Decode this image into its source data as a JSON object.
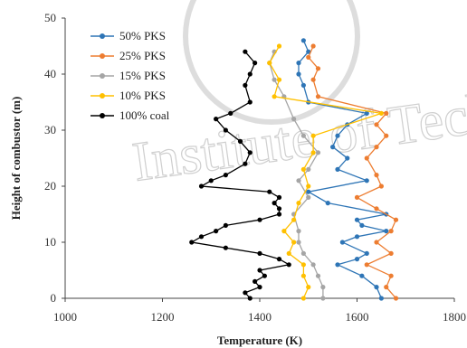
{
  "chart_data": {
    "type": "scatter",
    "title": "",
    "xlabel": "Temperature (K)",
    "ylabel": "Height of combustor (m)",
    "xlim": [
      1000,
      1800
    ],
    "ylim": [
      0,
      50
    ],
    "x_ticks": [
      1000,
      1200,
      1400,
      1600,
      1800
    ],
    "y_ticks": [
      0,
      10,
      20,
      30,
      40,
      50
    ],
    "grid": false,
    "legend_position": "top-left",
    "watermark_text": "Institute of Technology",
    "series": [
      {
        "name": "50% PKS",
        "color": "#2e75b6",
        "points": [
          [
            1650,
            0
          ],
          [
            1640,
            2
          ],
          [
            1610,
            4
          ],
          [
            1560,
            6
          ],
          [
            1600,
            7
          ],
          [
            1620,
            8
          ],
          [
            1570,
            10
          ],
          [
            1600,
            11
          ],
          [
            1660,
            12
          ],
          [
            1610,
            13
          ],
          [
            1600,
            14
          ],
          [
            1660,
            15
          ],
          [
            1540,
            17
          ],
          [
            1500,
            19
          ],
          [
            1620,
            21
          ],
          [
            1560,
            23
          ],
          [
            1580,
            25
          ],
          [
            1550,
            27
          ],
          [
            1560,
            29
          ],
          [
            1580,
            31
          ],
          [
            1620,
            33
          ],
          [
            1500,
            35
          ],
          [
            1490,
            38
          ],
          [
            1480,
            40
          ],
          [
            1480,
            42
          ],
          [
            1500,
            44
          ],
          [
            1490,
            46
          ]
        ]
      },
      {
        "name": "25% PKS",
        "color": "#ed7d31",
        "points": [
          [
            1680,
            0
          ],
          [
            1660,
            2
          ],
          [
            1670,
            4
          ],
          [
            1620,
            6
          ],
          [
            1670,
            8
          ],
          [
            1640,
            10
          ],
          [
            1670,
            12
          ],
          [
            1680,
            14
          ],
          [
            1640,
            16
          ],
          [
            1600,
            18
          ],
          [
            1650,
            20
          ],
          [
            1640,
            22
          ],
          [
            1620,
            25
          ],
          [
            1640,
            27
          ],
          [
            1660,
            29
          ],
          [
            1640,
            31
          ],
          [
            1660,
            33
          ],
          [
            1520,
            36
          ],
          [
            1510,
            39
          ],
          [
            1520,
            41
          ],
          [
            1500,
            43
          ],
          [
            1510,
            45
          ]
        ]
      },
      {
        "name": "15% PKS",
        "color": "#a5a5a5",
        "points": [
          [
            1530,
            0
          ],
          [
            1530,
            2
          ],
          [
            1520,
            4
          ],
          [
            1510,
            6
          ],
          [
            1490,
            8
          ],
          [
            1480,
            10
          ],
          [
            1480,
            12
          ],
          [
            1470,
            15
          ],
          [
            1500,
            18
          ],
          [
            1480,
            21
          ],
          [
            1500,
            23
          ],
          [
            1520,
            26
          ],
          [
            1490,
            29
          ],
          [
            1470,
            32
          ],
          [
            1450,
            36
          ],
          [
            1430,
            39
          ],
          [
            1420,
            42
          ],
          [
            1430,
            44
          ]
        ]
      },
      {
        "name": "10% PKS",
        "color": "#ffc000",
        "points": [
          [
            1490,
            0
          ],
          [
            1500,
            2
          ],
          [
            1490,
            4
          ],
          [
            1490,
            6
          ],
          [
            1460,
            8
          ],
          [
            1470,
            10
          ],
          [
            1450,
            12
          ],
          [
            1470,
            14
          ],
          [
            1480,
            17
          ],
          [
            1500,
            20
          ],
          [
            1490,
            23
          ],
          [
            1510,
            26
          ],
          [
            1510,
            29
          ],
          [
            1650,
            33
          ],
          [
            1430,
            36
          ],
          [
            1440,
            39
          ],
          [
            1420,
            42
          ],
          [
            1440,
            45
          ]
        ]
      },
      {
        "name": "100% coal",
        "color": "#000000",
        "points": [
          [
            1380,
            0
          ],
          [
            1370,
            1
          ],
          [
            1400,
            2
          ],
          [
            1390,
            3
          ],
          [
            1410,
            4
          ],
          [
            1400,
            5
          ],
          [
            1460,
            6
          ],
          [
            1440,
            7
          ],
          [
            1400,
            8
          ],
          [
            1330,
            9
          ],
          [
            1260,
            10
          ],
          [
            1280,
            11
          ],
          [
            1310,
            12
          ],
          [
            1330,
            13
          ],
          [
            1400,
            14
          ],
          [
            1440,
            15
          ],
          [
            1440,
            16
          ],
          [
            1430,
            17
          ],
          [
            1440,
            18
          ],
          [
            1420,
            19
          ],
          [
            1280,
            20
          ],
          [
            1300,
            21
          ],
          [
            1330,
            22
          ],
          [
            1370,
            24
          ],
          [
            1380,
            26
          ],
          [
            1360,
            28
          ],
          [
            1330,
            30
          ],
          [
            1310,
            32
          ],
          [
            1340,
            33
          ],
          [
            1380,
            35
          ],
          [
            1370,
            38
          ],
          [
            1380,
            40
          ],
          [
            1390,
            42
          ],
          [
            1370,
            44
          ]
        ]
      }
    ]
  }
}
